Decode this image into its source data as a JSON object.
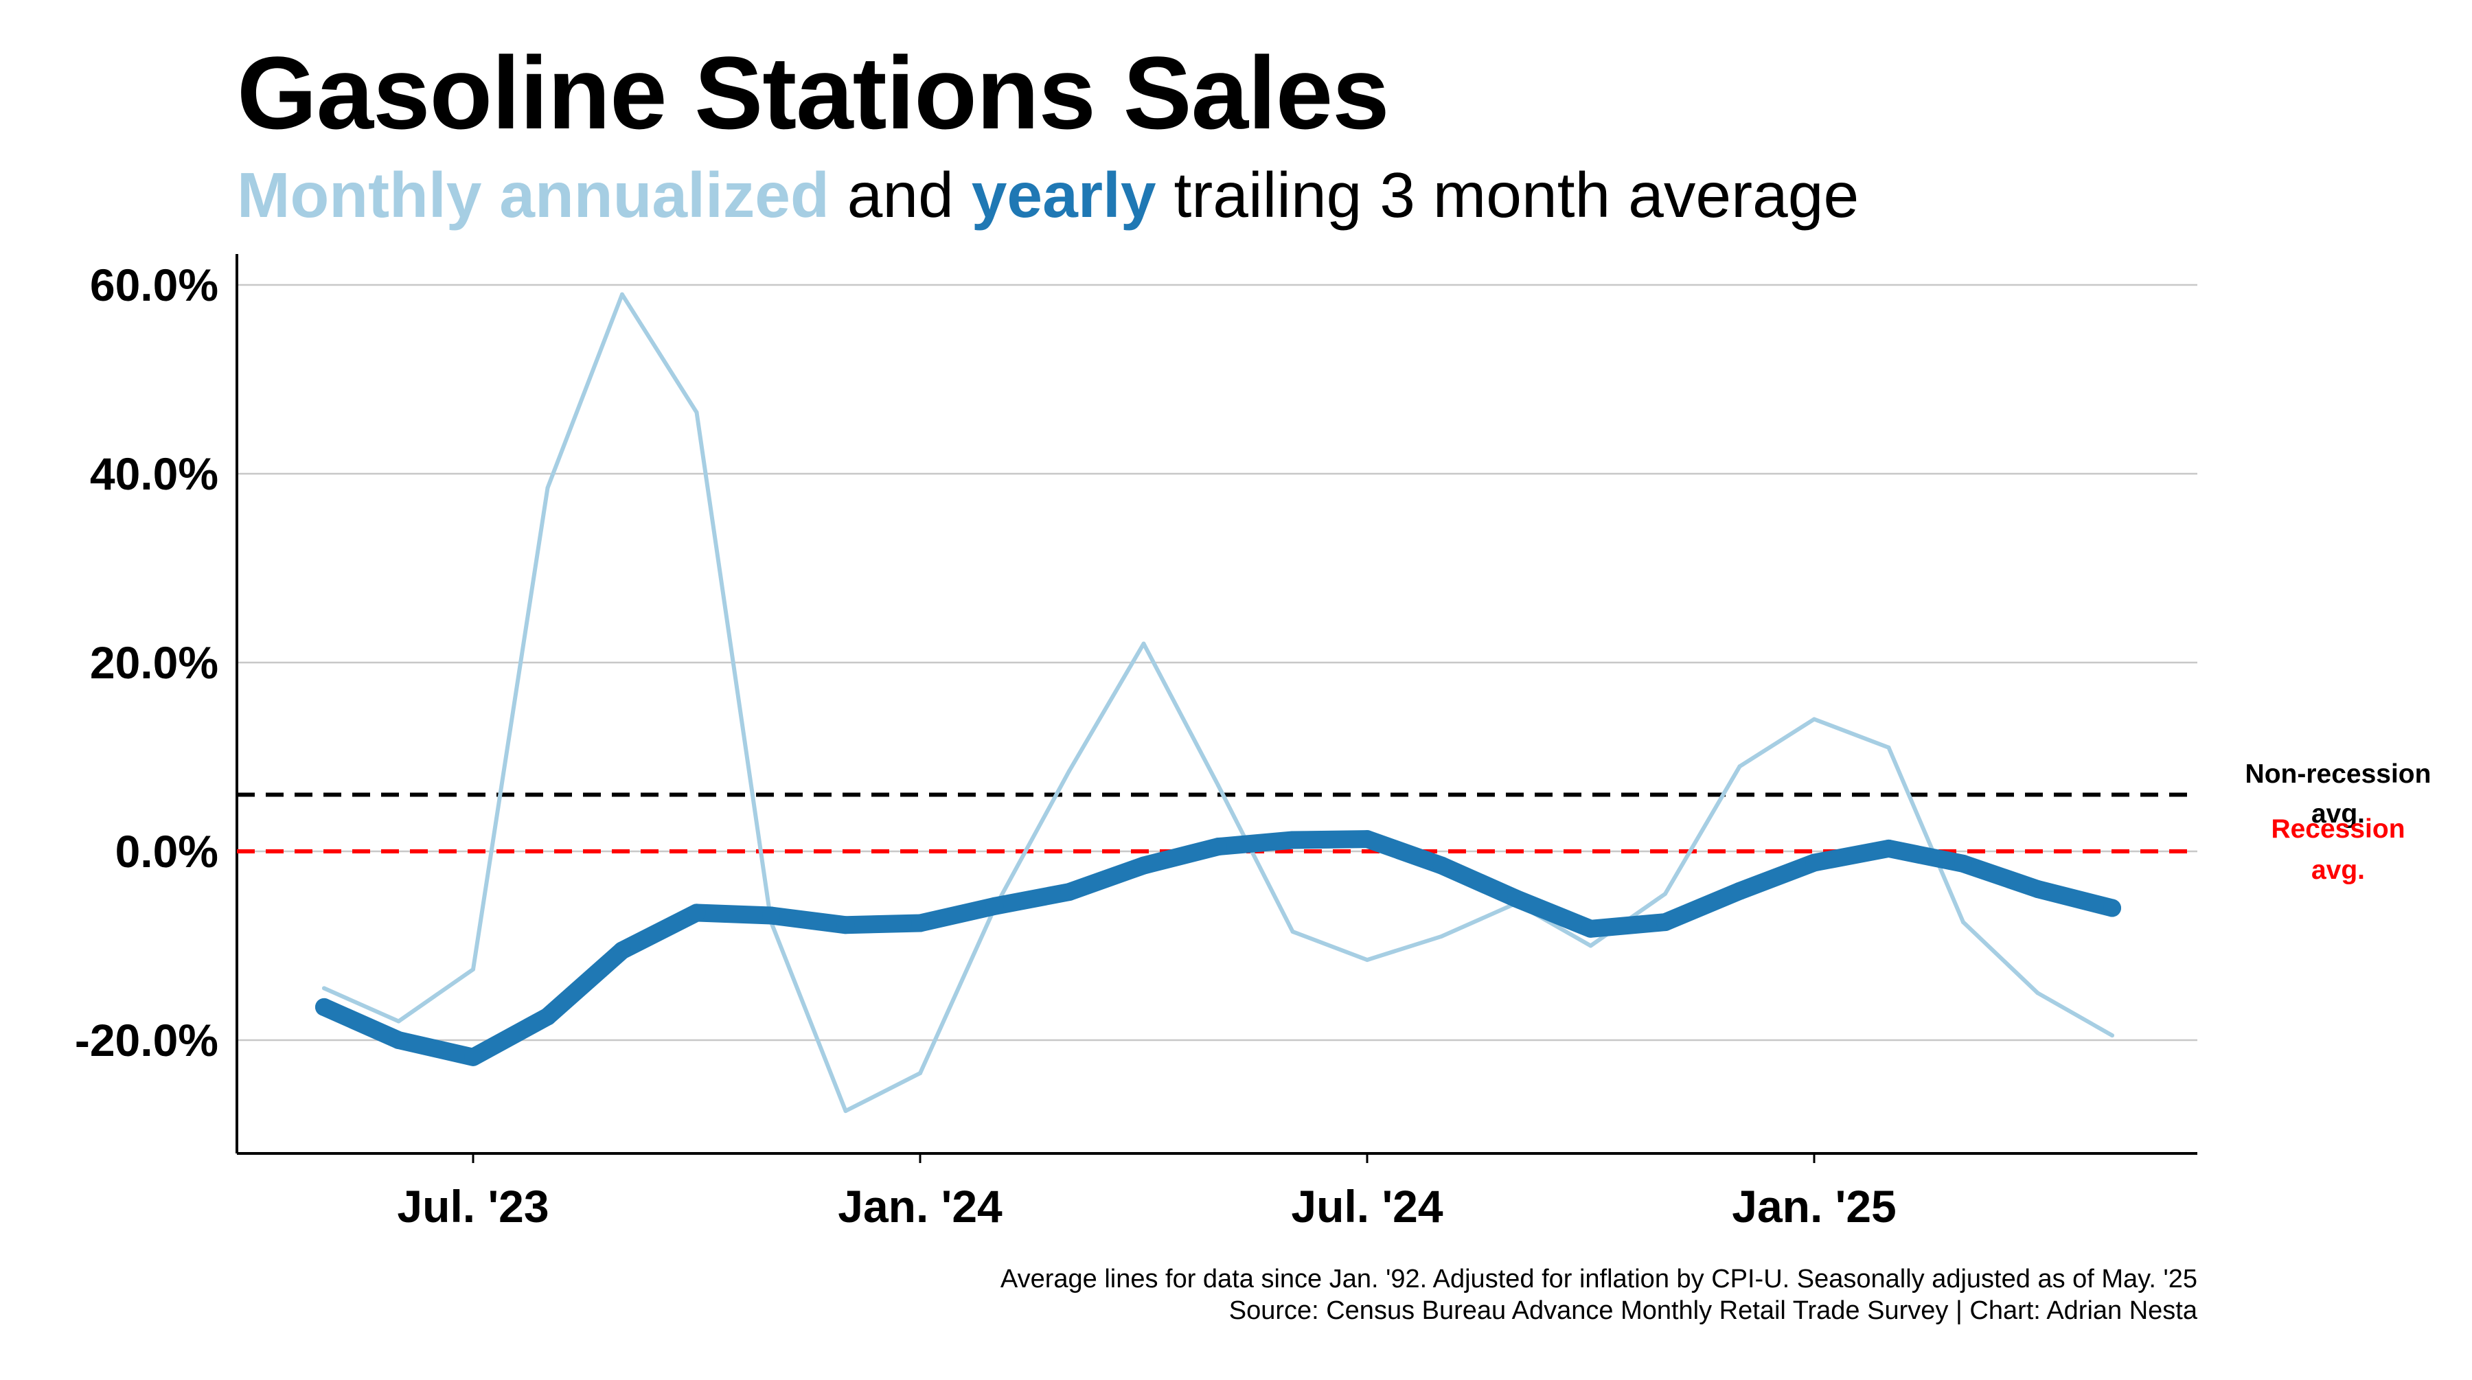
{
  "header": {
    "title": "Gasoline Stations Sales",
    "subtitle_part1": "Monthly annualized",
    "subtitle_part2": " and ",
    "subtitle_part3": "yearly",
    "subtitle_part4": " trailing 3 month average"
  },
  "footer": {
    "line1": "Average lines for data since Jan. '92. Adjusted for inflation by CPI-U. Seasonally adjusted as of May. '25",
    "line2": "Source: Census Bureau Advance Monthly Retail Trade Survey | Chart: Adrian Nesta"
  },
  "chart_data": {
    "type": "line",
    "x": [
      "2023-05",
      "2023-06",
      "2023-07",
      "2023-08",
      "2023-09",
      "2023-10",
      "2023-11",
      "2023-12",
      "2024-01",
      "2024-02",
      "2024-03",
      "2024-04",
      "2024-05",
      "2024-06",
      "2024-07",
      "2024-08",
      "2024-09",
      "2024-10",
      "2024-11",
      "2024-12",
      "2025-01",
      "2025-02",
      "2025-03",
      "2025-04",
      "2025-05"
    ],
    "series": [
      {
        "color": "#a6cee3",
        "values": [
          -14.5,
          -18.0,
          -12.5,
          38.5,
          59.0,
          46.5,
          -7.5,
          -27.5,
          -23.5,
          -6.0,
          8.5,
          22.0,
          7.0,
          -8.5,
          -11.5,
          -9.0,
          -5.5,
          -10.0,
          -4.5,
          9.0,
          14.0,
          11.0,
          -7.5,
          -15.0,
          -19.5
        ]
      },
      {
        "color": "#1f78b4",
        "values": [
          -16.5,
          -20.0,
          -21.8,
          -17.5,
          -10.5,
          -6.5,
          -6.8,
          -7.8,
          -7.6,
          -5.8,
          -4.3,
          -1.5,
          0.5,
          1.2,
          1.3,
          -1.5,
          -5.0,
          -8.2,
          -7.5,
          -4.2,
          -1.2,
          0.3,
          -1.3,
          -4.0,
          -6.0
        ]
      }
    ],
    "reference_lines": [
      {
        "label": "Non-recession avg.",
        "value": 6.0,
        "color": "#000000",
        "style": "dashed"
      },
      {
        "label": "Recession avg.",
        "value": 0.0,
        "color": "#ff0000",
        "style": "dashed"
      }
    ],
    "y_ticks": [
      -20,
      0,
      20,
      40,
      60
    ],
    "y_tick_labels": [
      "-20.0%",
      "0.0%",
      "20.0%",
      "40.0%",
      "60.0%"
    ],
    "x_ticks": [
      "2023-07",
      "2024-01",
      "2024-07",
      "2025-01"
    ],
    "x_tick_labels": [
      "Jul. '23",
      "Jan. '24",
      "Jul. '24",
      "Jan. '25"
    ],
    "ylim": [
      -32,
      63
    ],
    "grid": "horizontal"
  }
}
